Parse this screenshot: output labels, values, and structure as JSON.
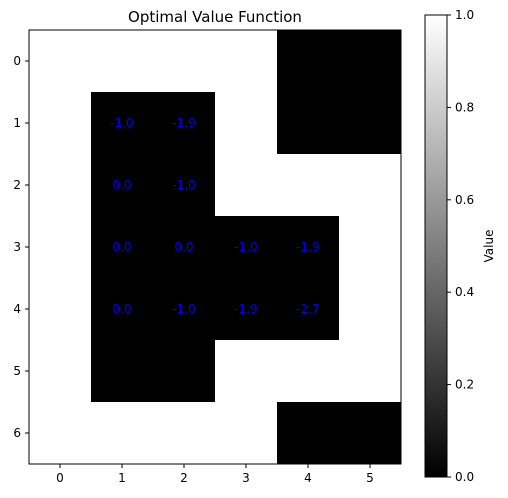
{
  "chart_data": {
    "type": "heatmap",
    "title": "Optimal Value Function",
    "x_ticks": [
      "0",
      "1",
      "2",
      "3",
      "4",
      "5"
    ],
    "y_ticks": [
      "0",
      "1",
      "2",
      "3",
      "4",
      "5",
      "6"
    ],
    "colorbar": {
      "label": "Value",
      "ticks": [
        "0.0",
        "0.2",
        "0.4",
        "0.6",
        "0.8",
        "1.0"
      ],
      "range": [
        0,
        1
      ],
      "colormap": "gray"
    },
    "grid": [
      [
        1,
        1,
        1,
        1,
        0,
        0
      ],
      [
        1,
        0,
        0,
        1,
        0,
        0
      ],
      [
        1,
        0,
        0,
        1,
        1,
        1
      ],
      [
        1,
        0,
        0,
        0,
        0,
        1
      ],
      [
        1,
        0,
        0,
        0,
        0,
        1
      ],
      [
        1,
        0,
        0,
        1,
        1,
        1
      ],
      [
        1,
        1,
        1,
        1,
        0,
        0
      ]
    ],
    "cell_labels": [
      {
        "row": 1,
        "col": 1,
        "text": "-1.0"
      },
      {
        "row": 1,
        "col": 2,
        "text": "-1.9"
      },
      {
        "row": 2,
        "col": 1,
        "text": "0.0"
      },
      {
        "row": 2,
        "col": 2,
        "text": "-1.0"
      },
      {
        "row": 3,
        "col": 1,
        "text": "0.0"
      },
      {
        "row": 3,
        "col": 2,
        "text": "0.0"
      },
      {
        "row": 3,
        "col": 3,
        "text": "-1.0"
      },
      {
        "row": 3,
        "col": 4,
        "text": "-1.9"
      },
      {
        "row": 4,
        "col": 1,
        "text": "0.0"
      },
      {
        "row": 4,
        "col": 2,
        "text": "-1.0"
      },
      {
        "row": 4,
        "col": 3,
        "text": "-1.9"
      },
      {
        "row": 4,
        "col": 4,
        "text": "-2.7"
      }
    ],
    "label_color": "#0000ff"
  }
}
